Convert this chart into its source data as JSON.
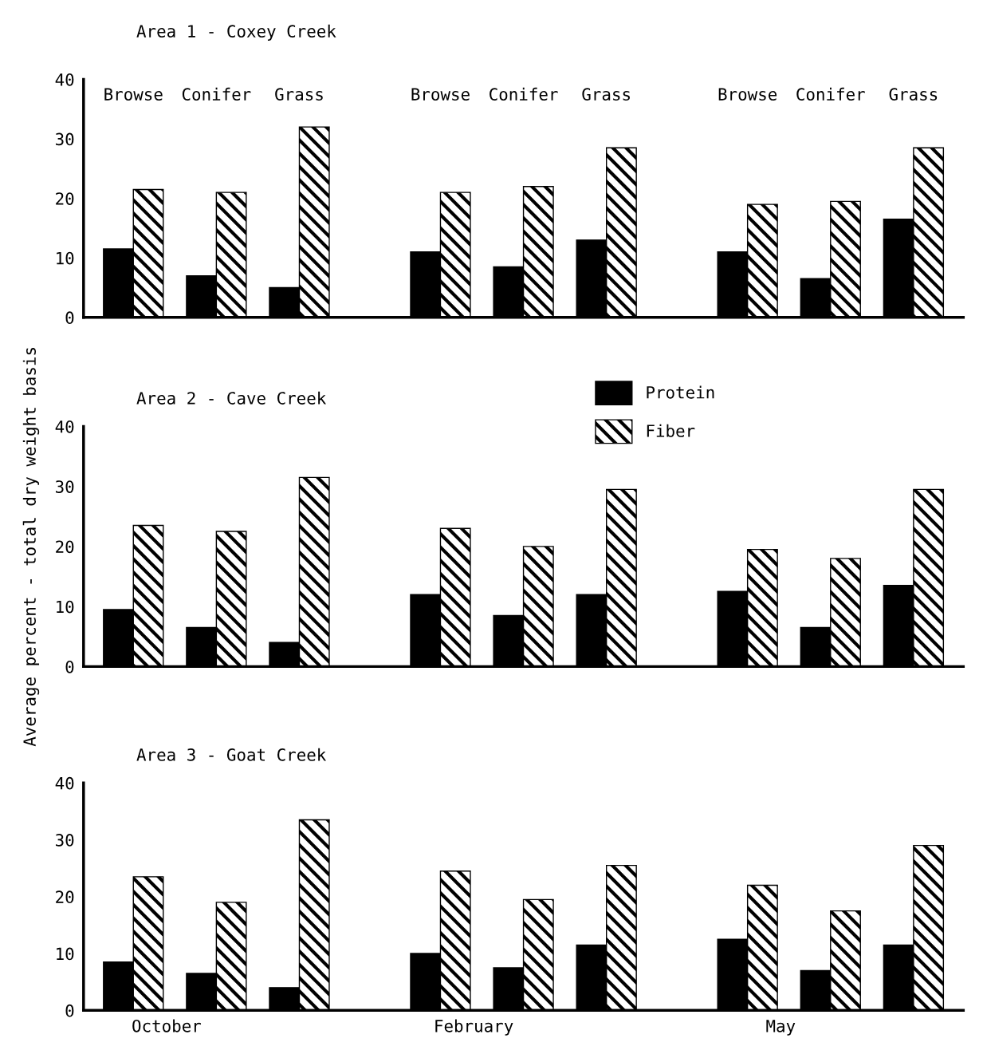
{
  "chart_data": [
    {
      "type": "bar",
      "title": "Area 1 - Coxey Creek",
      "categories": [
        "Browse",
        "Conifer",
        "Grass",
        "Browse",
        "Conifer",
        "Grass",
        "Browse",
        "Conifer",
        "Grass"
      ],
      "ylim": [
        0,
        40
      ],
      "yticks": [
        0,
        10,
        20,
        30,
        40
      ],
      "grid": false,
      "legend": false,
      "series": [
        {
          "color": "#000000",
          "values": [
            11.5,
            7,
            5,
            11,
            8.5,
            13,
            11,
            6.5,
            16.5
          ]
        },
        {
          "color": "#000000",
          "values": [
            21.5,
            21,
            32,
            21,
            22,
            28.5,
            19,
            19.5,
            28.5
          ]
        }
      ]
    },
    {
      "type": "bar",
      "title": "Area 2 - Cave Creek",
      "ylabel": "Average percent - total dry weight basis",
      "categories": [
        null,
        null,
        null,
        null,
        null,
        null,
        null,
        null,
        null
      ],
      "ylim": [
        0,
        40
      ],
      "yticks": [
        0,
        10,
        20,
        30,
        40
      ],
      "grid": false,
      "legend": "top",
      "series": [
        {
          "name": "Protein",
          "color": "#000000",
          "values": [
            9.5,
            6.5,
            4,
            12,
            8.5,
            12,
            12.5,
            6.5,
            13.5
          ]
        },
        {
          "name": "Fiber",
          "color": "#000000",
          "values": [
            23.5,
            22.5,
            31.5,
            23,
            20,
            29.5,
            19.5,
            18,
            29.5
          ]
        }
      ]
    },
    {
      "type": "bar",
      "title": "Area 3 - Goat Creek",
      "categories": [
        null,
        null,
        null,
        null,
        null,
        null,
        null,
        null,
        null
      ],
      "ylim": [
        0,
        40
      ],
      "yticks": [
        0,
        10,
        20,
        30,
        40
      ],
      "grid": false,
      "legend": false,
      "annotations": [
        "October",
        "February",
        "May"
      ],
      "series": [
        {
          "color": "#000000",
          "values": [
            8.5,
            6.5,
            4,
            10,
            7.5,
            11.5,
            12.5,
            7,
            11.5
          ]
        },
        {
          "color": "#000000",
          "values": [
            23.5,
            19,
            33.5,
            24.5,
            19.5,
            25.5,
            22,
            17.5,
            29
          ]
        }
      ]
    }
  ]
}
